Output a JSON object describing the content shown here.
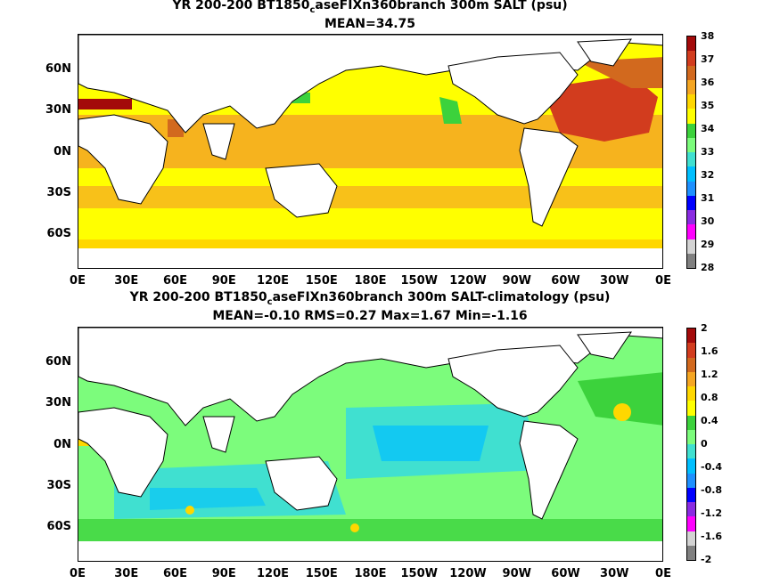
{
  "top": {
    "title_main": "YR 200-200 BT1850",
    "title_sub": "c",
    "title_rest": "aseFIXn360branch 300m SALT (psu)",
    "stats": "MEAN=34.75",
    "colorbar": {
      "labels": [
        "38",
        "37",
        "36",
        "35",
        "34",
        "33",
        "32",
        "31",
        "30",
        "29",
        "28"
      ],
      "colors": [
        "#a30a0a",
        "#d23c1e",
        "#d2691e",
        "#f5a623",
        "#ffd700",
        "#ffff00",
        "#3cd23c",
        "#7cfc7c",
        "#40e0d0",
        "#00bfff",
        "#1e90ff",
        "#0000ff",
        "#8a2be2",
        "#ff00ff",
        "#d3d3d3",
        "#808080"
      ]
    }
  },
  "bottom": {
    "title_main": "YR 200-200 BT1850",
    "title_sub": "c",
    "title_rest": "aseFIXn360branch 300m SALT-climatology (psu)",
    "stats": "MEAN=-0.10   RMS=0.27   Max=1.67   Min=-1.16",
    "colorbar": {
      "labels": [
        "2",
        "1.6",
        "1.2",
        "0.8",
        "0.4",
        "0",
        "-0.4",
        "-0.8",
        "-1.2",
        "-1.6",
        "-2"
      ],
      "colors": [
        "#a30a0a",
        "#d23c1e",
        "#d2691e",
        "#f5a623",
        "#ffd700",
        "#ffff00",
        "#3cd23c",
        "#7cfc7c",
        "#40e0d0",
        "#00bfff",
        "#1e90ff",
        "#0000ff",
        "#8a2be2",
        "#ff00ff",
        "#d3d3d3",
        "#808080"
      ]
    }
  },
  "lat_labels": [
    "60N",
    "30N",
    "0N",
    "30S",
    "60S"
  ],
  "lon_labels": [
    "0E",
    "30E",
    "60E",
    "90E",
    "120E",
    "150E",
    "180E",
    "150W",
    "120W",
    "90W",
    "60W",
    "30W",
    "0E"
  ]
}
